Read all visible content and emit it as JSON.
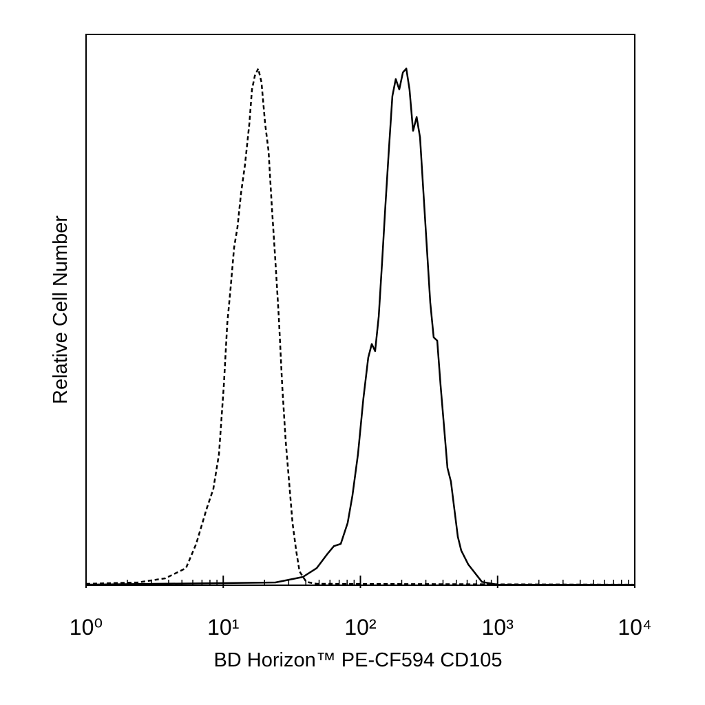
{
  "chart_data": {
    "type": "line",
    "x_label": "BD Horizon™ PE-CF594 CD105",
    "y_label": "Relative Cell Number",
    "xlog": true,
    "xlim": [
      1,
      10000
    ],
    "ylim": [
      0,
      100
    ],
    "xticks": [
      {
        "value": 1,
        "label": "10⁰"
      },
      {
        "value": 10,
        "label": "10¹"
      },
      {
        "value": 100,
        "label": "10²"
      },
      {
        "value": 1000,
        "label": "10³"
      },
      {
        "value": 10000,
        "label": "10⁴"
      }
    ],
    "xminorticks": [
      2,
      3,
      4,
      5,
      6,
      7,
      8,
      9,
      20,
      30,
      40,
      50,
      60,
      70,
      80,
      90,
      200,
      300,
      400,
      500,
      600,
      700,
      800,
      900,
      2000,
      3000,
      4000,
      5000,
      6000,
      7000,
      8000,
      9000
    ],
    "series": [
      {
        "color": "#000000",
        "dashed": true,
        "x": [
          1,
          2.38,
          3.78,
          5.35,
          6.35,
          7.55,
          8.47,
          9.31,
          10.1,
          10.7,
          11.3,
          12,
          12.7,
          13.5,
          14.4,
          15.5,
          16.2,
          17,
          18,
          19,
          20.2,
          21.4,
          22.6,
          24,
          25.4,
          26.9,
          28.5,
          30.2,
          32,
          34,
          36,
          40.3,
          48,
          10000
        ],
        "values": [
          0.25,
          0.5,
          1.25,
          3.1,
          7.5,
          13.8,
          17.5,
          23.8,
          36.3,
          47.5,
          53.8,
          61.3,
          65,
          71.3,
          76.3,
          83.8,
          90,
          92.5,
          93.8,
          91.3,
          83.8,
          78.8,
          68.8,
          58.8,
          48.8,
          36.3,
          26.3,
          18.8,
          11.3,
          6.3,
          2.5,
          0.6,
          0.25,
          0.1
        ]
      },
      {
        "color": "#000000",
        "dashed": false,
        "x": [
          1,
          24,
          38.1,
          48,
          57.1,
          64.1,
          71.9,
          80.7,
          87.5,
          96,
          105,
          114,
          121,
          128,
          136,
          144,
          152,
          161,
          171,
          181,
          192,
          204,
          216,
          228,
          242,
          257,
          272,
          288,
          305,
          323,
          342,
          363,
          384,
          407,
          431,
          457,
          484,
          513,
          543,
          610,
          769,
          1000,
          10000
        ],
        "values": [
          0.1,
          0.5,
          1.5,
          3.1,
          5.6,
          7.1,
          7.5,
          11.3,
          16.3,
          23.8,
          33.8,
          41.3,
          43.8,
          42.5,
          48.8,
          58.8,
          68.8,
          78.8,
          88.8,
          91.9,
          90,
          93.1,
          93.8,
          90,
          82.5,
          85,
          81.3,
          71.3,
          61.3,
          51.3,
          45,
          44.4,
          36.3,
          28.8,
          21.3,
          18.8,
          13.8,
          8.8,
          6.3,
          3.8,
          0.6,
          0.1,
          0.1
        ]
      }
    ]
  }
}
